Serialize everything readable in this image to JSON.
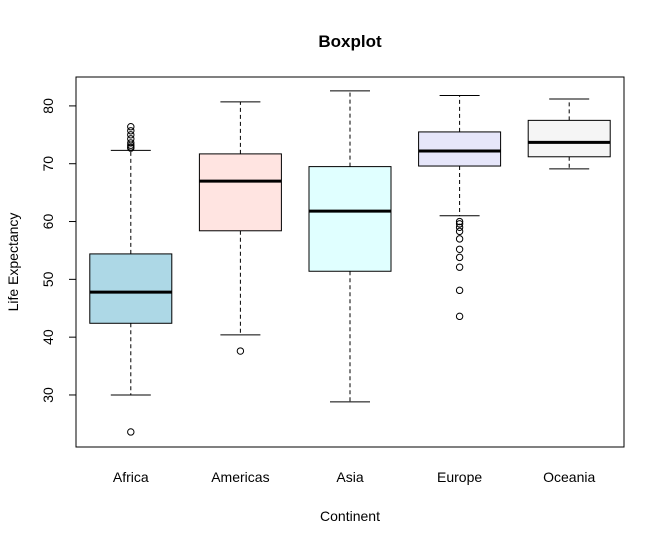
{
  "chart_data": {
    "type": "boxplot",
    "title": "Boxplot",
    "xlabel": "Continent",
    "ylabel": "Life Expectancy",
    "ylim": [
      21,
      85
    ],
    "yticks": [
      30,
      40,
      50,
      60,
      70,
      80
    ],
    "categories": [
      "Africa",
      "Americas",
      "Asia",
      "Europe",
      "Oceania"
    ],
    "boxes": [
      {
        "category": "Africa",
        "fill": "#add8e6",
        "whisker_low": 30.0,
        "q1": 42.4,
        "median": 47.8,
        "q3": 54.4,
        "whisker_high": 72.3,
        "outliers": [
          23.6,
          72.7,
          72.9,
          73.2,
          73.6,
          74.3,
          75.0,
          75.7,
          76.4
        ]
      },
      {
        "category": "Americas",
        "fill": "#ffe4e1",
        "whisker_low": 40.4,
        "q1": 58.4,
        "median": 67.0,
        "q3": 71.7,
        "whisker_high": 80.7,
        "outliers": [
          37.6
        ]
      },
      {
        "category": "Asia",
        "fill": "#e0ffff",
        "whisker_low": 28.8,
        "q1": 51.4,
        "median": 61.8,
        "q3": 69.5,
        "whisker_high": 82.6,
        "outliers": []
      },
      {
        "category": "Europe",
        "fill": "#e6e6fa",
        "whisker_low": 61.0,
        "q1": 69.6,
        "median": 72.2,
        "q3": 75.5,
        "whisker_high": 81.8,
        "outliers": [
          43.6,
          48.1,
          52.1,
          53.8,
          55.2,
          57.0,
          58.3,
          59.0,
          59.6,
          60.0
        ]
      },
      {
        "category": "Oceania",
        "fill": "#f5f5f5",
        "whisker_low": 69.1,
        "q1": 71.2,
        "median": 73.7,
        "q3": 77.5,
        "whisker_high": 81.2,
        "outliers": []
      }
    ],
    "legend": "none",
    "grid": false
  }
}
